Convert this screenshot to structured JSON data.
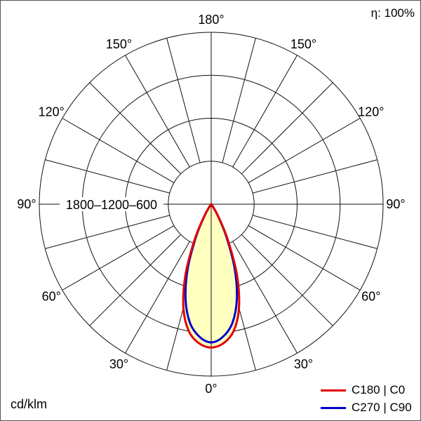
{
  "header": {
    "efficiency": "η: 100%"
  },
  "footer": {
    "unit": "cd/klm"
  },
  "chart_data": {
    "type": "polar",
    "description": "Luminous intensity distribution curve (polar diagram)",
    "unit": "cd/klm",
    "efficiency_percent": 100,
    "angle_labels_deg": [
      0,
      30,
      60,
      90,
      120,
      150,
      180
    ],
    "angle_grid_step_deg": 15,
    "radial_ticks": [
      600,
      1200,
      1800
    ],
    "radial_axis_label": "1800–1200–600",
    "radial_max": 2400,
    "gamma_deg": [
      0,
      5,
      10,
      15,
      20,
      25,
      30,
      35,
      40,
      45
    ],
    "series": [
      {
        "name": "C180 | C0",
        "color": "#e00000",
        "values": [
          2000,
          1950,
          1800,
          1500,
          1050,
          550,
          200,
          50,
          10,
          0
        ]
      },
      {
        "name": "C270 | C90",
        "color": "#0000cc",
        "values": [
          1930,
          1860,
          1690,
          1380,
          960,
          500,
          180,
          40,
          5,
          0
        ]
      }
    ],
    "fill_color": "#ffffc0",
    "grid_color": "#111111"
  }
}
